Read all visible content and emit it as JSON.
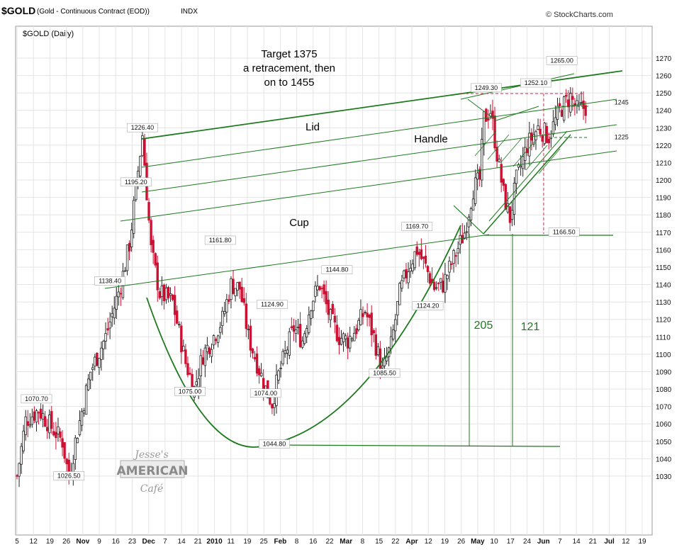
{
  "header": {
    "symbol": "$GOLD",
    "description": "(Gold - Continuous Contract (EOD))",
    "exchange": "INDX",
    "watermark": "© StockCharts.com",
    "panel_label": "$GOLD (Daily)"
  },
  "logo": {
    "line1": "Jesse's",
    "line2": "AMERICAN",
    "line3": "Café"
  },
  "colors": {
    "up": "#222222",
    "down": "#cc1133",
    "trend": "#1e7a1e",
    "dashed": "#cc3355",
    "grid": "#e4e4e4"
  },
  "chart_data": {
    "type": "candlestick",
    "ylim": [
      1020,
      1275
    ],
    "y_ticks": [
      1030,
      1040,
      1050,
      1060,
      1070,
      1080,
      1090,
      1100,
      1110,
      1120,
      1130,
      1140,
      1150,
      1160,
      1170,
      1180,
      1190,
      1200,
      1210,
      1220,
      1230,
      1240,
      1250,
      1260,
      1270
    ],
    "x_tick_labels": [
      "5",
      "12",
      "19",
      "26",
      "Nov",
      "9",
      "16",
      "23",
      "Dec",
      "7",
      "14",
      "21",
      "2010",
      "11",
      "19",
      "25",
      "Feb",
      "8",
      "16",
      "22",
      "Mar",
      "8",
      "15",
      "22",
      "Apr",
      "12",
      "19",
      "26",
      "May",
      "10",
      "17",
      "24",
      "Jun",
      "7",
      "14",
      "21",
      "Jul",
      "12",
      "19"
    ],
    "x_tick_bold": [
      "Nov",
      "Dec",
      "2010",
      "Feb",
      "Mar",
      "Apr",
      "May",
      "Jun",
      "Jul"
    ],
    "close_path": [
      [
        0,
        1030
      ],
      [
        4,
        1062
      ],
      [
        10,
        1068
      ],
      [
        16,
        1058
      ],
      [
        21,
        1050
      ],
      [
        24,
        1029
      ],
      [
        27,
        1050
      ],
      [
        34,
        1090
      ],
      [
        41,
        1110
      ],
      [
        48,
        1140
      ],
      [
        52,
        1163
      ],
      [
        55,
        1195
      ],
      [
        58,
        1226
      ],
      [
        62,
        1160
      ],
      [
        66,
        1135
      ],
      [
        72,
        1130
      ],
      [
        78,
        1095
      ],
      [
        82,
        1080
      ],
      [
        86,
        1100
      ],
      [
        90,
        1108
      ],
      [
        95,
        1120
      ],
      [
        99,
        1140
      ],
      [
        103,
        1138
      ],
      [
        107,
        1110
      ],
      [
        111,
        1095
      ],
      [
        115,
        1080
      ],
      [
        118,
        1072
      ],
      [
        121,
        1088
      ],
      [
        124,
        1100
      ],
      [
        128,
        1115
      ],
      [
        132,
        1108
      ],
      [
        136,
        1130
      ],
      [
        140,
        1140
      ],
      [
        145,
        1120
      ],
      [
        149,
        1110
      ],
      [
        153,
        1108
      ],
      [
        157,
        1115
      ],
      [
        161,
        1125
      ],
      [
        165,
        1110
      ],
      [
        169,
        1090
      ],
      [
        173,
        1105
      ],
      [
        177,
        1135
      ],
      [
        181,
        1150
      ],
      [
        185,
        1160
      ],
      [
        189,
        1150
      ],
      [
        193,
        1138
      ],
      [
        197,
        1140
      ],
      [
        202,
        1155
      ],
      [
        207,
        1170
      ],
      [
        211,
        1195
      ],
      [
        214,
        1200
      ],
      [
        216,
        1235
      ],
      [
        219,
        1240
      ],
      [
        222,
        1215
      ],
      [
        225,
        1192
      ],
      [
        228,
        1178
      ],
      [
        231,
        1200
      ],
      [
        236,
        1220
      ],
      [
        241,
        1230
      ],
      [
        246,
        1225
      ],
      [
        251,
        1240
      ],
      [
        256,
        1248
      ],
      [
        259,
        1240
      ],
      [
        263,
        1242
      ]
    ],
    "x_total": 269,
    "labels": [
      {
        "text": "1226.40",
        "x": 58,
        "y": 1226.4
      },
      {
        "text": "1195.20",
        "x": 55,
        "y": 1195.2
      },
      {
        "text": "1138.40",
        "x": 43,
        "y": 1138.4
      },
      {
        "text": "1070.70",
        "x": 9,
        "y": 1070.7
      },
      {
        "text": "1026.50",
        "x": 24,
        "y": 1026.5
      },
      {
        "text": "1075.00",
        "x": 80,
        "y": 1075.0
      },
      {
        "text": "1161.80",
        "x": 94,
        "y": 1161.8
      },
      {
        "text": "1124.90",
        "x": 118,
        "y": 1124.9
      },
      {
        "text": "1074.00",
        "x": 115,
        "y": 1074.0
      },
      {
        "text": "1044.80",
        "x": 119,
        "y": 1044.8
      },
      {
        "text": "1144.80",
        "x": 148,
        "y": 1144.8
      },
      {
        "text": "1085.50",
        "x": 170,
        "y": 1085.5
      },
      {
        "text": "1169.70",
        "x": 185,
        "y": 1169.7
      },
      {
        "text": "1124.20",
        "x": 190,
        "y": 1124.2
      },
      {
        "text": "1249.30",
        "x": 217,
        "y": 1249.3
      },
      {
        "text": "1252.10",
        "x": 240,
        "y": 1252.1
      },
      {
        "text": "1265.00",
        "x": 252,
        "y": 1265.0
      },
      {
        "text": "1166.50",
        "x": 253,
        "y": 1166.5
      },
      {
        "text": "1245",
        "x": 275,
        "y": 1245
      },
      {
        "text": "1225",
        "x": 275,
        "y": 1225
      }
    ],
    "annotations": {
      "target_line1": "Target 1375",
      "target_line2": "a retracement,  then",
      "target_line3": "on  to 1455",
      "lid": "Lid",
      "handle": "Handle",
      "cup": "Cup",
      "depth_cup": "205",
      "depth_handle": "121"
    }
  }
}
